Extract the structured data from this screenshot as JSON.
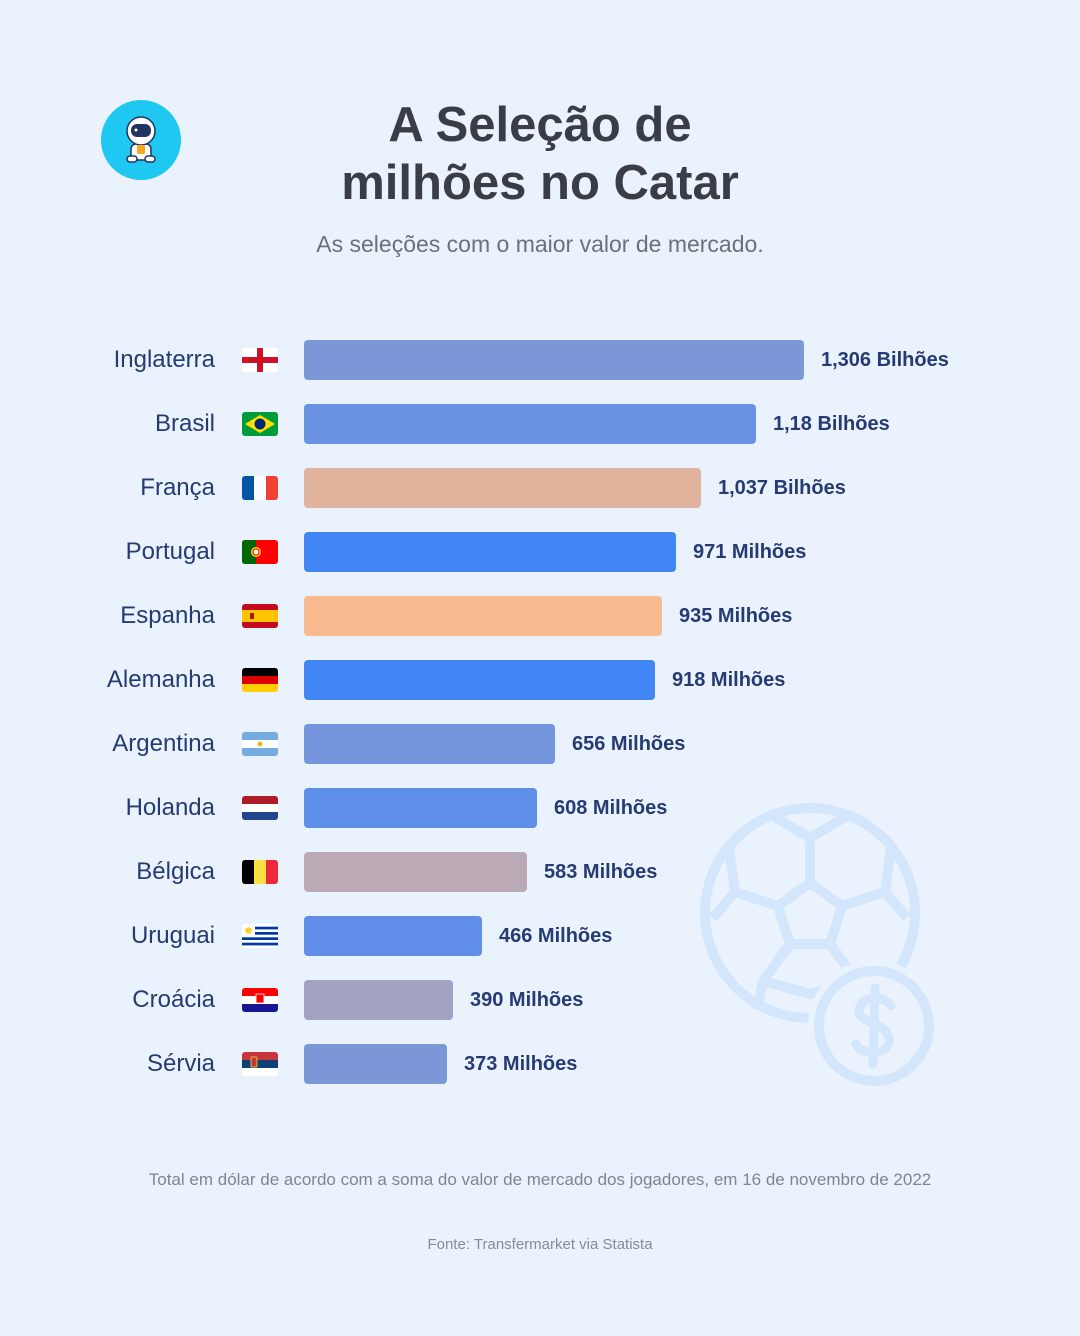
{
  "header": {
    "title_line1": "A Seleção de",
    "title_line2": "milhões no Catar",
    "subtitle": "As seleções com o maior valor de mercado."
  },
  "chart_data": {
    "type": "bar",
    "orientation": "horizontal",
    "title": "A Seleção de milhões no Catar",
    "unit": "USD",
    "categories": [
      "Inglaterra",
      "Brasil",
      "França",
      "Portugal",
      "Espanha",
      "Alemanha",
      "Argentina",
      "Holanda",
      "Bélgica",
      "Uruguai",
      "Croácia",
      "Sérvia"
    ],
    "values_millions": [
      1306,
      1180,
      1037,
      971,
      935,
      918,
      656,
      608,
      583,
      466,
      390,
      373
    ],
    "labels": [
      "1,306 Bilhões",
      "1,18 Bilhões",
      "1,037 Bilhões",
      "971 Milhões",
      "935 Milhões",
      "918 Milhões",
      "656 Milhões",
      "608 Milhões",
      "583 Milhões",
      "466 Milhões",
      "390 Milhões",
      "373 Milhões"
    ],
    "flags": [
      "england-flag",
      "brazil-flag",
      "france-flag",
      "portugal-flag",
      "spain-flag",
      "germany-flag",
      "argentina-flag",
      "netherlands-flag",
      "belgium-flag",
      "uruguay-flag",
      "croatia-flag",
      "serbia-flag"
    ],
    "colors": [
      "#7B97D8",
      "#6A92E3",
      "#E0B39D",
      "#4285F4",
      "#F8BB90",
      "#4285F4",
      "#7595DD",
      "#5D8EE8",
      "#BBA9B5",
      "#5F8DE8",
      "#A3A2C3",
      "#7B97D8"
    ],
    "xlim": [
      0,
      1306
    ]
  },
  "footer": {
    "note": "Total em dólar de acordo com a soma do valor de mercado dos jogadores, em 16 de novembro de 2022",
    "source": "Fonte: Transfermarket via Statista"
  },
  "icons": {
    "logo": "astronaut-logo-icon",
    "decoration": "soccer-ball-money-icon"
  }
}
